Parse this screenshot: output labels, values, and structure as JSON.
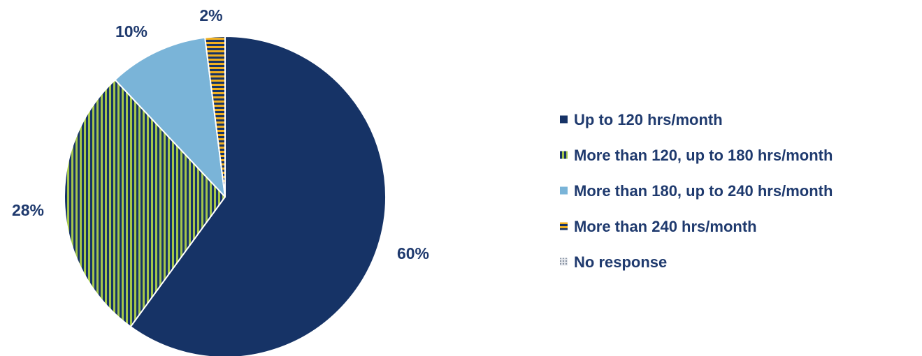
{
  "chart_data": {
    "type": "pie",
    "slices": [
      {
        "label": "Up to 120 hrs/month",
        "value": 60,
        "value_label": "60%",
        "fill": "solid",
        "color": "#163366"
      },
      {
        "label": "More than 120, up to 180 hrs/month",
        "value": 28,
        "value_label": "28%",
        "fill": "vertical-stripes",
        "color": "#a4c64a",
        "stripe_color": "#163366"
      },
      {
        "label": "More than 180, up to 240 hrs/month",
        "value": 10,
        "value_label": "10%",
        "fill": "solid",
        "color": "#7ab4d8"
      },
      {
        "label": "More than 240 hrs/month",
        "value": 2,
        "value_label": "2%",
        "fill": "horizontal-stripes",
        "color": "#f0b020",
        "stripe_color": "#163366"
      },
      {
        "label": "No response",
        "value": 0,
        "value_label": "",
        "fill": "dotted",
        "color": "#b8c0cc"
      }
    ],
    "legend_position": "right",
    "start_angle_deg": 0,
    "direction": "clockwise",
    "text_color": "#1f3a6e",
    "slice_border_color": "#ffffff"
  }
}
